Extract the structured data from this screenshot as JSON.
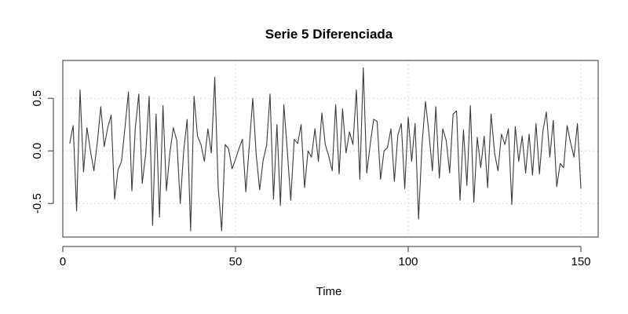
{
  "chart_data": {
    "type": "line",
    "title": "Serie 5 Diferenciada",
    "xlabel": "Time",
    "ylabel": "",
    "xlim": [
      0,
      155
    ],
    "ylim": [
      -0.82,
      0.86
    ],
    "xticks": [
      {
        "value": 0,
        "label": "0"
      },
      {
        "value": 50,
        "label": "50"
      },
      {
        "value": 100,
        "label": "100"
      },
      {
        "value": 150,
        "label": "150"
      }
    ],
    "yticks": [
      {
        "value": -0.5,
        "label": "-0.5"
      },
      {
        "value": 0.0,
        "label": "0.0"
      },
      {
        "value": 0.5,
        "label": "0.5"
      }
    ],
    "grid": true,
    "series": [
      {
        "color": "#3a3a3a",
        "x": [
          2,
          3,
          4,
          5,
          6,
          7,
          8,
          9,
          10,
          11,
          12,
          13,
          14,
          15,
          16,
          17,
          18,
          19,
          20,
          21,
          22,
          23,
          24,
          25,
          26,
          27,
          28,
          29,
          30,
          31,
          32,
          33,
          34,
          35,
          36,
          37,
          38,
          39,
          40,
          41,
          42,
          43,
          44,
          45,
          46,
          47,
          48,
          49,
          50,
          51,
          52,
          53,
          54,
          55,
          56,
          57,
          58,
          59,
          60,
          61,
          62,
          63,
          64,
          65,
          66,
          67,
          68,
          69,
          70,
          71,
          72,
          73,
          74,
          75,
          76,
          77,
          78,
          79,
          80,
          81,
          82,
          83,
          84,
          85,
          86,
          87,
          88,
          89,
          90,
          91,
          92,
          93,
          94,
          95,
          96,
          97,
          98,
          99,
          100,
          101,
          102,
          103,
          104,
          105,
          106,
          107,
          108,
          109,
          110,
          111,
          112,
          113,
          114,
          115,
          116,
          117,
          118,
          119,
          120,
          121,
          122,
          123,
          124,
          125,
          126,
          127,
          128,
          129,
          130,
          131,
          132,
          133,
          134,
          135,
          136,
          137,
          138,
          139,
          140,
          141,
          142,
          143,
          144,
          145,
          146,
          147,
          148,
          149,
          150
        ],
        "values": [
          0.07,
          0.24,
          -0.57,
          0.58,
          -0.2,
          0.22,
          0.0,
          -0.19,
          0.08,
          0.42,
          0.04,
          0.22,
          0.34,
          -0.46,
          -0.18,
          -0.1,
          0.22,
          0.56,
          -0.38,
          0.22,
          0.54,
          -0.31,
          -0.03,
          0.52,
          -0.71,
          0.35,
          -0.63,
          0.43,
          -0.38,
          -0.02,
          0.22,
          0.1,
          -0.5,
          0.0,
          0.3,
          -0.76,
          0.52,
          0.14,
          0.06,
          -0.1,
          0.21,
          -0.02,
          0.7,
          -0.35,
          -0.76,
          0.06,
          0.02,
          -0.17,
          -0.08,
          0.02,
          0.11,
          -0.39,
          0.05,
          0.5,
          -0.04,
          -0.37,
          -0.09,
          0.05,
          0.54,
          -0.46,
          0.25,
          -0.52,
          0.44,
          0.0,
          -0.47,
          0.11,
          0.07,
          0.25,
          -0.35,
          0.0,
          -0.06,
          0.21,
          -0.1,
          0.36,
          0.06,
          -0.05,
          -0.19,
          0.44,
          -0.22,
          0.4,
          -0.02,
          0.18,
          0.06,
          0.58,
          -0.27,
          0.79,
          -0.21,
          0.06,
          0.3,
          0.28,
          -0.27,
          0.0,
          0.03,
          0.21,
          -0.29,
          0.15,
          0.26,
          -0.36,
          0.32,
          -0.1,
          0.26,
          -0.65,
          0.06,
          0.47,
          0.17,
          -0.19,
          0.42,
          -0.26,
          0.21,
          0.1,
          -0.21,
          0.35,
          0.38,
          -0.47,
          0.2,
          -0.33,
          0.43,
          -0.49,
          0.13,
          -0.16,
          0.14,
          -0.35,
          0.35,
          -0.02,
          -0.19,
          0.16,
          0.06,
          0.21,
          -0.51,
          0.23,
          -0.1,
          0.14,
          -0.21,
          0.16,
          -0.23,
          0.26,
          -0.22,
          0.19,
          0.37,
          -0.06,
          0.29,
          -0.34,
          -0.12,
          -0.16,
          0.24,
          0.08,
          -0.06,
          0.26,
          -0.36
        ]
      }
    ]
  }
}
